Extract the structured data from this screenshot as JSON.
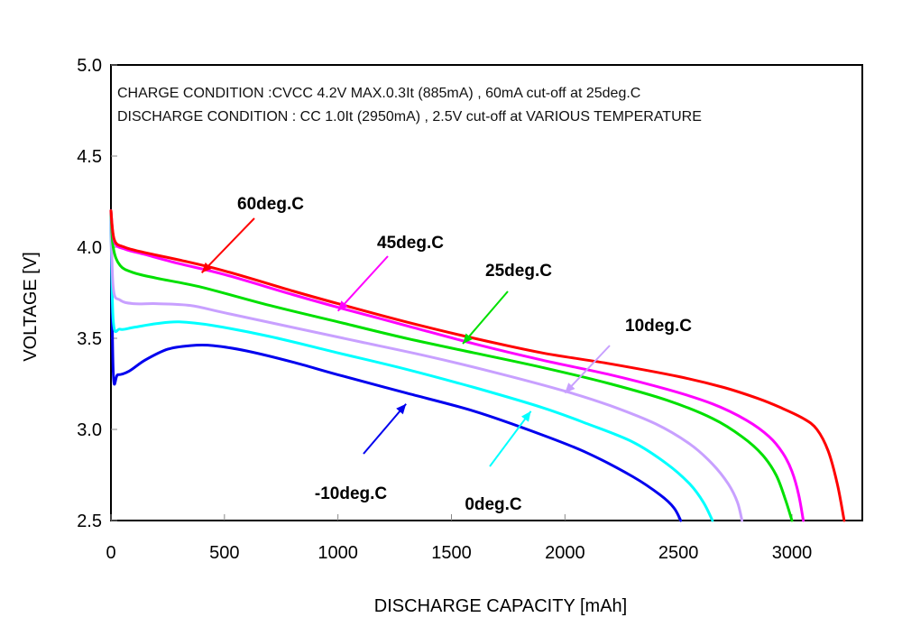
{
  "chart_data": {
    "type": "line",
    "title": "",
    "annotations": [
      "CHARGE CONDITION :CVCC 4.2V MAX.0.3It (885mA) , 60mA cut-off at  25deg.C",
      "DISCHARGE CONDITION : CC 1.0It (2950mA) , 2.5V cut-off at  VARIOUS TEMPERATURE"
    ],
    "xlabel": "DISCHARGE CAPACITY  [mAh]",
    "ylabel": "VOLTAGE  [V]",
    "xlim": [
      0,
      3300
    ],
    "ylim": [
      2.5,
      5.0
    ],
    "xticks": [
      0,
      500,
      1000,
      1500,
      2000,
      2500,
      3000
    ],
    "xtick_labels": [
      "0",
      "500",
      "1000",
      "1500",
      "2000",
      "2500",
      "3000"
    ],
    "yticks": [
      2.5,
      3.0,
      3.5,
      4.0,
      4.5,
      5.0
    ],
    "ytick_labels": [
      "2.5",
      "3.0",
      "3.5",
      "4.0",
      "4.5",
      "5.0"
    ],
    "grid": false,
    "legend": "inline-arrow-labels",
    "series": [
      {
        "name": "60deg.C",
        "color": "#ff0000",
        "x": [
          0,
          15,
          60,
          150,
          300,
          500,
          800,
          1000,
          1300,
          1600,
          1900,
          2200,
          2500,
          2700,
          2850,
          2950,
          3050,
          3110,
          3160,
          3200,
          3230
        ],
        "y": [
          4.2,
          4.04,
          4.0,
          3.97,
          3.93,
          3.87,
          3.76,
          3.69,
          3.59,
          3.5,
          3.42,
          3.36,
          3.29,
          3.23,
          3.17,
          3.12,
          3.06,
          3.0,
          2.88,
          2.7,
          2.5
        ],
        "label_anchor": [
          400,
          3.86
        ]
      },
      {
        "name": "45deg.C",
        "color": "#ff00ff",
        "x": [
          0,
          15,
          60,
          150,
          300,
          500,
          800,
          1000,
          1300,
          1600,
          1900,
          2200,
          2450,
          2650,
          2800,
          2900,
          2960,
          3000,
          3030,
          3050
        ],
        "y": [
          4.2,
          4.03,
          3.99,
          3.96,
          3.91,
          3.85,
          3.74,
          3.67,
          3.57,
          3.47,
          3.38,
          3.3,
          3.22,
          3.14,
          3.05,
          2.96,
          2.87,
          2.77,
          2.64,
          2.5
        ],
        "label_anchor": [
          1000,
          3.65
        ]
      },
      {
        "name": "25deg.C",
        "color": "#00e000",
        "x": [
          0,
          10,
          40,
          100,
          200,
          400,
          700,
          1000,
          1300,
          1600,
          1900,
          2200,
          2450,
          2650,
          2780,
          2870,
          2930,
          2970,
          3000
        ],
        "y": [
          4.2,
          4.0,
          3.9,
          3.86,
          3.83,
          3.78,
          3.68,
          3.59,
          3.5,
          3.42,
          3.34,
          3.25,
          3.16,
          3.06,
          2.96,
          2.86,
          2.75,
          2.62,
          2.5
        ],
        "label_anchor": [
          1550,
          3.47
        ]
      },
      {
        "name": "10deg.C",
        "color": "#c8a0ff",
        "x": [
          0,
          10,
          40,
          100,
          200,
          350,
          500,
          800,
          1100,
          1400,
          1700,
          2000,
          2200,
          2400,
          2550,
          2650,
          2720,
          2760,
          2780
        ],
        "y": [
          4.2,
          3.78,
          3.71,
          3.69,
          3.69,
          3.68,
          3.64,
          3.56,
          3.48,
          3.4,
          3.31,
          3.21,
          3.13,
          3.03,
          2.92,
          2.81,
          2.7,
          2.6,
          2.5
        ],
        "label_anchor": [
          2000,
          3.2
        ]
      },
      {
        "name": "0deg.C",
        "color": "#00ffff",
        "x": [
          0,
          10,
          40,
          100,
          200,
          300,
          450,
          700,
          1000,
          1300,
          1600,
          1900,
          2100,
          2300,
          2450,
          2550,
          2610,
          2650
        ],
        "y": [
          4.2,
          3.6,
          3.55,
          3.56,
          3.58,
          3.59,
          3.57,
          3.51,
          3.42,
          3.33,
          3.23,
          3.12,
          3.03,
          2.93,
          2.81,
          2.7,
          2.6,
          2.5
        ],
        "label_anchor": [
          1850,
          3.1
        ]
      },
      {
        "name": "-10deg.C",
        "color": "#0000ee",
        "x": [
          0,
          10,
          30,
          80,
          150,
          250,
          350,
          450,
          600,
          800,
          1000,
          1300,
          1600,
          1900,
          2100,
          2300,
          2420,
          2480,
          2510
        ],
        "y": [
          4.2,
          3.32,
          3.3,
          3.32,
          3.38,
          3.44,
          3.46,
          3.46,
          3.43,
          3.37,
          3.3,
          3.2,
          3.1,
          2.97,
          2.87,
          2.74,
          2.64,
          2.57,
          2.5
        ],
        "label_anchor": [
          1300,
          3.14
        ]
      }
    ],
    "labels": [
      {
        "text": "60deg.C",
        "series": "60deg.C"
      },
      {
        "text": "45deg.C",
        "series": "45deg.C"
      },
      {
        "text": "25deg.C",
        "series": "25deg.C"
      },
      {
        "text": "10deg.C",
        "series": "10deg.C"
      },
      {
        "text": "0deg.C",
        "series": "0deg.C"
      },
      {
        "text": "-10deg.C",
        "series": "-10deg.C"
      }
    ]
  }
}
